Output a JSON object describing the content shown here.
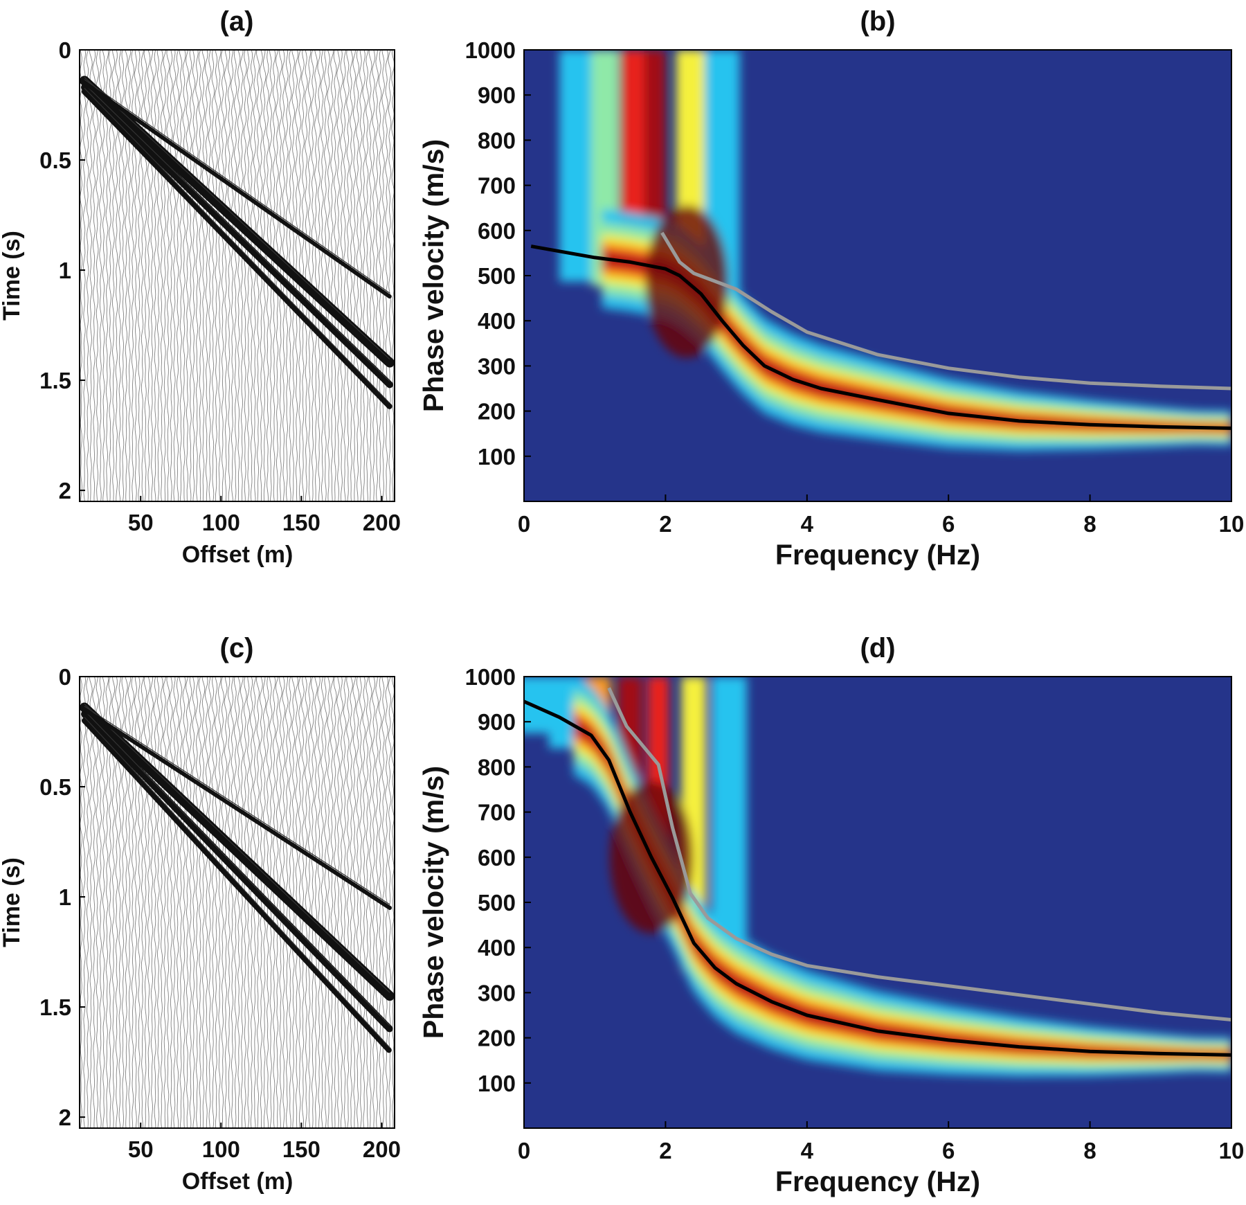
{
  "colors": {
    "axis": "#000000",
    "picked_curve": "#000000",
    "theory_curve": "#9a9a9a",
    "colormap": [
      "#00008f",
      "#1f2f86",
      "#1b74c9",
      "#27c3ef",
      "#8fe9a8",
      "#f5f03c",
      "#f89a1b",
      "#e8231c",
      "#a10f12",
      "#6a0808"
    ]
  },
  "chart_data": [
    {
      "panel": "(a)",
      "type": "heatmap",
      "subtype": "seismic wiggle traces",
      "title": "(a)",
      "xlabel": "Offset (m)",
      "ylabel": "Time (s)",
      "xlim": [
        12,
        208
      ],
      "ylim": [
        2.05,
        0
      ],
      "xticks": [
        50,
        100,
        150,
        200
      ],
      "yticks": [
        0,
        0.5,
        1,
        1.5,
        2
      ],
      "arrival_lines": [
        {
          "x": [
            15,
            205
          ],
          "y": [
            0.14,
            1.42
          ]
        },
        {
          "x": [
            15,
            205
          ],
          "y": [
            0.17,
            1.52
          ]
        },
        {
          "x": [
            15,
            205
          ],
          "y": [
            0.15,
            1.12
          ]
        },
        {
          "x": [
            15,
            205
          ],
          "y": [
            0.19,
            1.62
          ]
        }
      ]
    },
    {
      "panel": "(b)",
      "type": "heatmap",
      "subtype": "dispersion image with overlaid curves",
      "title": "(b)",
      "xlabel": "Frequency (Hz)",
      "ylabel": "Phase velocity (m/s)",
      "xlim": [
        0,
        10
      ],
      "ylim": [
        0,
        1000
      ],
      "xticks": [
        0,
        2,
        4,
        6,
        8,
        10
      ],
      "yticks": [
        100,
        200,
        300,
        400,
        500,
        600,
        700,
        800,
        900,
        1000
      ],
      "series": [
        {
          "color": "#000000",
          "x": [
            0.1,
            1.0,
            1.5,
            2.0,
            2.2,
            2.5,
            2.8,
            3.1,
            3.4,
            3.8,
            4.2,
            5.0,
            6.0,
            7.0,
            8.0,
            9.0,
            10.0
          ],
          "y": [
            565,
            540,
            530,
            515,
            500,
            460,
            400,
            345,
            300,
            270,
            250,
            225,
            195,
            178,
            170,
            165,
            162
          ]
        },
        {
          "color": "#9a9a9a",
          "x": [
            1.95,
            2.2,
            2.4,
            3.0,
            3.5,
            4.0,
            5.0,
            6.0,
            7.0,
            8.0,
            9.0,
            10.0
          ],
          "y": [
            595,
            530,
            505,
            470,
            420,
            375,
            325,
            295,
            275,
            262,
            255,
            250
          ]
        }
      ]
    },
    {
      "panel": "(c)",
      "type": "heatmap",
      "subtype": "seismic wiggle traces",
      "title": "(c)",
      "xlabel": "Offset (m)",
      "ylabel": "Time (s)",
      "xlim": [
        12,
        208
      ],
      "ylim": [
        2.05,
        0
      ],
      "xticks": [
        50,
        100,
        150,
        200
      ],
      "yticks": [
        0,
        0.5,
        1,
        1.5,
        2
      ],
      "arrival_lines": [
        {
          "x": [
            15,
            205
          ],
          "y": [
            0.14,
            1.45
          ]
        },
        {
          "x": [
            15,
            205
          ],
          "y": [
            0.17,
            1.6
          ]
        },
        {
          "x": [
            15,
            205
          ],
          "y": [
            0.15,
            1.05
          ]
        },
        {
          "x": [
            15,
            205
          ],
          "y": [
            0.2,
            1.7
          ]
        }
      ]
    },
    {
      "panel": "(d)",
      "type": "heatmap",
      "subtype": "dispersion image with overlaid curves",
      "title": "(d)",
      "xlabel": "Frequency (Hz)",
      "ylabel": "Phase velocity (m/s)",
      "xlim": [
        0,
        10
      ],
      "ylim": [
        0,
        1000
      ],
      "xticks": [
        0,
        2,
        4,
        6,
        8,
        10
      ],
      "yticks": [
        100,
        200,
        300,
        400,
        500,
        600,
        700,
        800,
        900,
        1000
      ],
      "series": [
        {
          "color": "#000000",
          "x": [
            0.0,
            0.5,
            0.95,
            1.2,
            1.5,
            1.8,
            2.1,
            2.4,
            2.7,
            3.0,
            3.5,
            4.0,
            5.0,
            6.0,
            7.0,
            8.0,
            9.0,
            10.0
          ],
          "y": [
            945,
            910,
            870,
            815,
            700,
            600,
            510,
            410,
            355,
            320,
            280,
            250,
            215,
            195,
            180,
            170,
            165,
            162
          ]
        },
        {
          "color": "#9a9a9a",
          "x": [
            1.2,
            1.45,
            1.9,
            2.1,
            2.35,
            2.6,
            3.0,
            3.5,
            4.0,
            5.0,
            6.0,
            7.0,
            8.0,
            9.0,
            10.0
          ],
          "y": [
            975,
            890,
            805,
            665,
            520,
            465,
            420,
            385,
            360,
            335,
            315,
            295,
            275,
            255,
            240
          ]
        }
      ]
    }
  ]
}
